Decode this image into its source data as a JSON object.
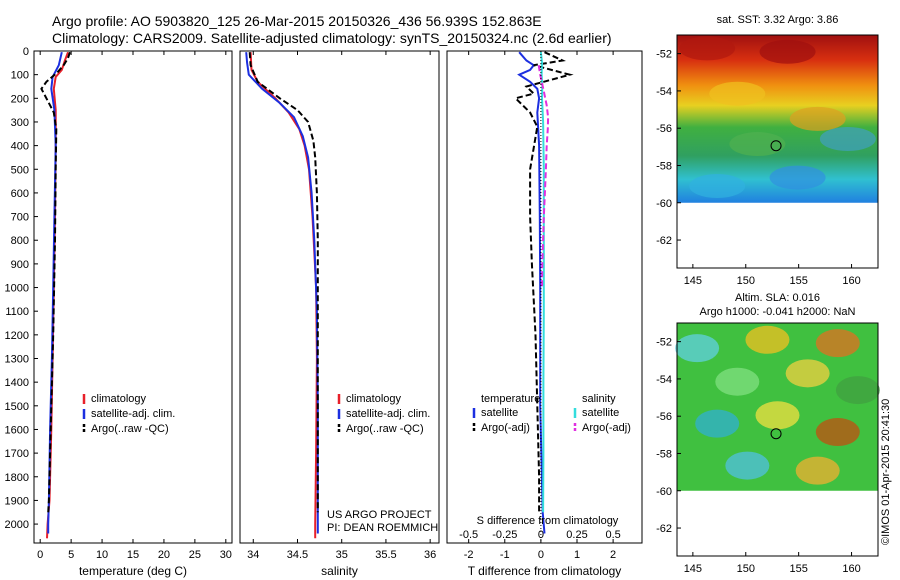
{
  "title_line1": "Argo profile: AO 5903820_125 26-Mar-2015 20150326_436 56.939S 152.863E",
  "title_line2": "Climatology: CARS2009. Satellite-adjusted climatology: synTS_20150324.nc (2.6d earlier)",
  "credit": "©IMOS 01-Apr-2015 20:41:30",
  "project_line1": "US ARGO PROJECT",
  "project_line2": "PI: DEAN ROEMMICH",
  "colors": {
    "clim": "#e8202a",
    "sat": "#1c2fe0",
    "argo": "#000000",
    "sat_s": "#33dddd",
    "argo_s": "#e030e0"
  },
  "chart_data": [
    {
      "type": "line",
      "panel": "temperature",
      "xlabel": "temperature (deg C)",
      "ylabel": "",
      "xlim": [
        -1,
        31
      ],
      "ylim": [
        2080,
        0
      ],
      "xticks": [
        0,
        5,
        10,
        15,
        20,
        25,
        30
      ],
      "yticks": [
        0,
        100,
        200,
        300,
        400,
        500,
        600,
        700,
        800,
        900,
        1000,
        1100,
        1200,
        1300,
        1400,
        1500,
        1600,
        1700,
        1800,
        1900,
        2000
      ],
      "legend": [
        "climatology",
        "satellite-adj. clim.",
        "Argo(..raw -QC)"
      ],
      "series": [
        {
          "name": "climatology",
          "color": "#e8202a",
          "dash": "",
          "points": [
            [
              4.5,
              5
            ],
            [
              4.0,
              40
            ],
            [
              3.5,
              80
            ],
            [
              2.5,
              110
            ],
            [
              2.2,
              160
            ],
            [
              2.5,
              250
            ],
            [
              2.5,
              400
            ],
            [
              2.4,
              700
            ],
            [
              2.2,
              1000
            ],
            [
              2.0,
              1300
            ],
            [
              1.8,
              1600
            ],
            [
              1.5,
              1900
            ],
            [
              1.2,
              2000
            ],
            [
              1.1,
              2060
            ]
          ]
        },
        {
          "name": "satellite-adj. clim.",
          "color": "#1c2fe0",
          "dash": "",
          "points": [
            [
              3.5,
              5
            ],
            [
              3.0,
              60
            ],
            [
              2.0,
              110
            ],
            [
              1.8,
              160
            ],
            [
              2.3,
              250
            ],
            [
              2.5,
              400
            ],
            [
              2.3,
              700
            ],
            [
              2.1,
              1000
            ],
            [
              1.9,
              1300
            ],
            [
              1.6,
              1600
            ],
            [
              1.4,
              1900
            ],
            [
              1.3,
              2000
            ],
            [
              1.3,
              2040
            ]
          ]
        },
        {
          "name": "Argo(..raw -QC)",
          "color": "#000000",
          "dash": "6,3",
          "points": [
            [
              4.8,
              5
            ],
            [
              4.5,
              30
            ],
            [
              3.8,
              60
            ],
            [
              2.8,
              90
            ],
            [
              1.0,
              130
            ],
            [
              0.2,
              160
            ],
            [
              1.0,
              200
            ],
            [
              2.2,
              260
            ],
            [
              2.6,
              330
            ],
            [
              2.5,
              500
            ],
            [
              2.4,
              800
            ],
            [
              2.1,
              1200
            ],
            [
              1.7,
              1600
            ],
            [
              1.4,
              1900
            ],
            [
              1.3,
              1950
            ]
          ]
        }
      ]
    },
    {
      "type": "line",
      "panel": "salinity",
      "xlabel": "salinity",
      "ylabel": "",
      "xlim": [
        33.85,
        36.1
      ],
      "ylim": [
        2080,
        0
      ],
      "xticks": [
        34,
        34.5,
        35,
        35.5,
        36
      ],
      "yticks": [],
      "legend": [
        "climatology",
        "satellite-adj. clim.",
        "Argo(..raw -QC)"
      ],
      "series": [
        {
          "name": "climatology",
          "color": "#e8202a",
          "dash": "",
          "points": [
            [
              33.97,
              5
            ],
            [
              33.98,
              80
            ],
            [
              34.05,
              130
            ],
            [
              34.25,
              200
            ],
            [
              34.4,
              260
            ],
            [
              34.52,
              330
            ],
            [
              34.58,
              400
            ],
            [
              34.63,
              500
            ],
            [
              34.67,
              700
            ],
            [
              34.71,
              1000
            ],
            [
              34.72,
              1300
            ],
            [
              34.71,
              1700
            ],
            [
              34.7,
              2000
            ],
            [
              34.7,
              2060
            ]
          ]
        },
        {
          "name": "satellite-adj. clim.",
          "color": "#1c2fe0",
          "dash": "",
          "points": [
            [
              33.92,
              5
            ],
            [
              33.93,
              50
            ],
            [
              33.95,
              100
            ],
            [
              34.1,
              160
            ],
            [
              34.3,
              220
            ],
            [
              34.46,
              280
            ],
            [
              34.56,
              360
            ],
            [
              34.62,
              450
            ],
            [
              34.66,
              600
            ],
            [
              34.69,
              800
            ],
            [
              34.72,
              1100
            ],
            [
              34.73,
              1500
            ],
            [
              34.73,
              1900
            ],
            [
              34.73,
              2040
            ]
          ]
        },
        {
          "name": "Argo(..raw -QC)",
          "color": "#000000",
          "dash": "6,3",
          "points": [
            [
              33.96,
              5
            ],
            [
              33.97,
              60
            ],
            [
              34.05,
              130
            ],
            [
              34.3,
              200
            ],
            [
              34.5,
              250
            ],
            [
              34.62,
              300
            ],
            [
              34.68,
              380
            ],
            [
              34.7,
              450
            ],
            [
              34.72,
              600
            ],
            [
              34.73,
              800
            ],
            [
              34.73,
              1000
            ],
            [
              34.73,
              1300
            ],
            [
              34.73,
              1500
            ],
            [
              34.73,
              1950
            ]
          ]
        }
      ]
    },
    {
      "type": "line",
      "panel": "difference",
      "xlabel": "T difference from climatology",
      "xlabel_top": "S difference from climatology",
      "ylabel": "",
      "xlim": [
        -2.6,
        2.8
      ],
      "ylim": [
        2080,
        0
      ],
      "xticks": [
        -2,
        -1,
        0,
        1,
        2
      ],
      "xticks_s_values": [
        -0.5,
        -0.25,
        0,
        0.25,
        0.5
      ],
      "xticks_s": [
        "-0.5",
        "-0.25",
        "0",
        "0.25",
        "0.5"
      ],
      "yticks": [],
      "legend_t_title": "temperature",
      "legend_s_title": "salinity",
      "legend_t": [
        "satellite",
        "Argo(-adj)"
      ],
      "legend_s": [
        "satellite",
        "Argo(-adj)"
      ],
      "series": [
        {
          "name": "satellite",
          "color": "#1c2fe0",
          "dash": "",
          "points": [
            [
              -0.6,
              5
            ],
            [
              -0.4,
              40
            ],
            [
              -0.2,
              60
            ],
            [
              -0.3,
              80
            ],
            [
              -0.6,
              100
            ],
            [
              -0.3,
              130
            ],
            [
              -0.1,
              160
            ],
            [
              -0.05,
              200
            ],
            [
              -0.1,
              260
            ],
            [
              -0.05,
              400
            ],
            [
              -0.03,
              700
            ],
            [
              -0.02,
              1000
            ],
            [
              -0.02,
              1500
            ],
            [
              0.05,
              1950
            ],
            [
              0.1,
              2040
            ]
          ]
        },
        {
          "name": "Argo(-adj)",
          "color": "#000000",
          "dash": "6,3",
          "points": [
            [
              0.1,
              5
            ],
            [
              0.6,
              40
            ],
            [
              -0.2,
              60
            ],
            [
              0.8,
              100
            ],
            [
              -0.4,
              150
            ],
            [
              -0.2,
              180
            ],
            [
              -0.7,
              200
            ],
            [
              -0.3,
              260
            ],
            [
              -0.1,
              320
            ],
            [
              -0.3,
              500
            ],
            [
              -0.3,
              700
            ],
            [
              -0.25,
              900
            ],
            [
              -0.15,
              1200
            ],
            [
              -0.1,
              1500
            ],
            [
              -0.05,
              1800
            ],
            [
              -0.05,
              1950
            ]
          ]
        },
        {
          "name": "satellite",
          "color": "#33dddd",
          "dash": "",
          "points": [
            [
              0.0,
              5
            ],
            [
              0.03,
              50
            ],
            [
              0.02,
              100
            ],
            [
              0.04,
              150
            ],
            [
              0.03,
              200
            ],
            [
              0.06,
              300
            ],
            [
              0.08,
              500
            ],
            [
              0.08,
              800
            ],
            [
              0.08,
              1100
            ],
            [
              0.07,
              1400
            ],
            [
              0.07,
              1700
            ],
            [
              0.06,
              1950
            ]
          ]
        },
        {
          "name": "Argo(-adj)",
          "color": "#e030e0",
          "dash": "6,3",
          "points": [
            [
              -0.06,
              60
            ],
            [
              -0.02,
              100
            ],
            [
              0.08,
              170
            ],
            [
              0.16,
              230
            ],
            [
              0.2,
              280
            ],
            [
              0.19,
              330
            ],
            [
              0.16,
              400
            ],
            [
              0.14,
              500
            ],
            [
              0.11,
              600
            ],
            [
              0.08,
              700
            ],
            [
              0.06,
              800
            ],
            [
              0.04,
              900
            ],
            [
              0.03,
              1000
            ]
          ]
        }
      ]
    },
    {
      "type": "heatmap",
      "panel": "sst",
      "title": "sat. SST: 3.32 Argo: 3.86",
      "xlim": [
        143.5,
        162.5
      ],
      "ylim": [
        -63.5,
        -51
      ],
      "xticks": [
        145,
        150,
        155,
        160
      ],
      "yticks": [
        -52,
        -54,
        -56,
        -58,
        -60,
        -62
      ],
      "marker": {
        "lon": 152.863,
        "lat": -56.939
      }
    },
    {
      "type": "heatmap",
      "panel": "sla",
      "title_line1": "Altim. SLA: 0.016",
      "title_line2": "Argo h1000: -0.041 h2000: NaN",
      "xlim": [
        143.5,
        162.5
      ],
      "ylim": [
        -63.5,
        -51
      ],
      "xticks": [
        145,
        150,
        155,
        160
      ],
      "yticks": [
        -52,
        -54,
        -56,
        -58,
        -60,
        -62
      ],
      "marker": {
        "lon": 152.863,
        "lat": -56.939
      }
    }
  ]
}
